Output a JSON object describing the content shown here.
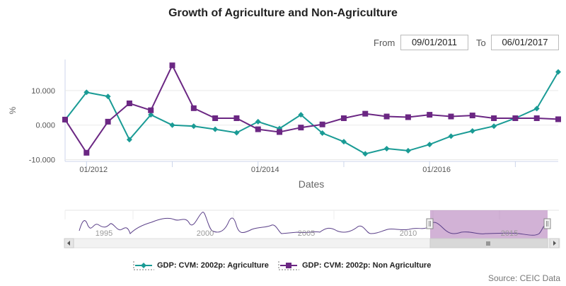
{
  "title": "Growth of Agriculture and Non-Agriculture",
  "range": {
    "from_label": "From",
    "from_value": "09/01/2011",
    "to_label": "To",
    "to_value": "06/01/2017"
  },
  "source": "Source: CEIC Data",
  "chart_data": {
    "type": "line",
    "title": "Growth of Agriculture and Non-Agriculture",
    "xlabel": "Dates",
    "ylabel": "%",
    "ylim": [
      -10.5,
      19
    ],
    "yticks": [
      -10,
      0,
      10
    ],
    "ytick_labels": [
      "-10.000",
      "0.000",
      "10.000"
    ],
    "xticks": [
      {
        "t": 1,
        "label": "01/2012"
      },
      {
        "t": 9,
        "label": "01/2014"
      },
      {
        "t": 17,
        "label": "01/2016"
      }
    ],
    "x_quarter_index_range": [
      0,
      23
    ],
    "x": [
      "09/2011",
      "12/2011",
      "03/2012",
      "06/2012",
      "09/2012",
      "12/2012",
      "03/2013",
      "06/2013",
      "09/2013",
      "12/2013",
      "03/2014",
      "06/2014",
      "09/2014",
      "12/2014",
      "03/2015",
      "06/2015",
      "09/2015",
      "12/2015",
      "03/2016",
      "06/2016",
      "09/2016",
      "12/2016",
      "03/2017",
      "06/2017"
    ],
    "series": [
      {
        "name": "GDP: CVM: 2002p: Agriculture",
        "color": "#1a9b95",
        "marker": "diamond",
        "values": [
          1.5,
          9.5,
          8.3,
          -4.2,
          3.0,
          0.0,
          -0.3,
          -1.2,
          -2.2,
          1.0,
          -1.0,
          3.0,
          -2.3,
          -4.8,
          -8.3,
          -6.8,
          -7.4,
          -5.6,
          -3.2,
          -1.7,
          -0.3,
          2.0,
          4.8,
          15.4
        ]
      },
      {
        "name": "GDP: CVM: 2002p: Non Agriculture",
        "color": "#6b2783",
        "marker": "square",
        "values": [
          1.6,
          -8.0,
          1.0,
          6.3,
          4.3,
          17.3,
          4.9,
          2.0,
          2.0,
          -1.2,
          -2.0,
          -0.7,
          0.2,
          2.0,
          3.3,
          2.5,
          2.3,
          3.0,
          2.5,
          2.8,
          2.0,
          2.0,
          2.0,
          1.7
        ]
      }
    ],
    "navigator": {
      "tick_labels": [
        "1995",
        "2000",
        "2005",
        "2010",
        "2015"
      ],
      "selection": {
        "from": "09/01/2011",
        "to": "06/01/2017"
      }
    }
  }
}
